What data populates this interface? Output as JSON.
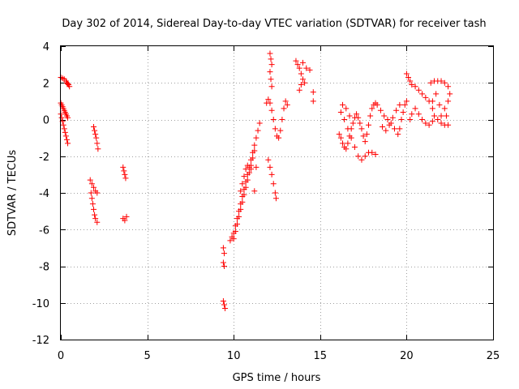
{
  "chart_data": {
    "type": "scatter",
    "title": "Day 302 of 2014, Sidereal Day-to-day VTEC variation (SDTVAR) for receiver tash",
    "xlabel": "GPS time / hours",
    "ylabel": "SDTVAR / TECUs",
    "xlim": [
      0,
      25
    ],
    "ylim": [
      -12,
      4
    ],
    "xticks": [
      0,
      5,
      10,
      15,
      20,
      25
    ],
    "yticks": [
      -12,
      -10,
      -8,
      -6,
      -4,
      -2,
      0,
      2,
      4
    ],
    "xtick_labels": [
      "0",
      "5",
      "10",
      "15",
      "20",
      "25"
    ],
    "ytick_labels": [
      "-12",
      "-10",
      "-8",
      "-6",
      "-4",
      "-2",
      "0",
      "2",
      "4"
    ],
    "grid": true,
    "marker": "+",
    "color": "#ff0000",
    "series": [
      {
        "name": "SDTVAR",
        "points": [
          [
            0.0,
            2.3
          ],
          [
            0.1,
            2.25
          ],
          [
            0.2,
            2.2
          ],
          [
            0.3,
            2.1
          ],
          [
            0.35,
            2.0
          ],
          [
            0.4,
            1.95
          ],
          [
            0.45,
            1.9
          ],
          [
            0.5,
            1.8
          ],
          [
            0.0,
            0.9
          ],
          [
            0.05,
            0.8
          ],
          [
            0.1,
            0.7
          ],
          [
            0.15,
            0.6
          ],
          [
            0.2,
            0.5
          ],
          [
            0.25,
            0.4
          ],
          [
            0.3,
            0.3
          ],
          [
            0.35,
            0.2
          ],
          [
            0.4,
            0.1
          ],
          [
            0.0,
            0.3
          ],
          [
            0.05,
            0.1
          ],
          [
            0.1,
            -0.1
          ],
          [
            0.15,
            -0.3
          ],
          [
            0.2,
            -0.5
          ],
          [
            0.25,
            -0.7
          ],
          [
            0.3,
            -0.9
          ],
          [
            0.35,
            -1.1
          ],
          [
            0.4,
            -1.3
          ],
          [
            1.9,
            -0.4
          ],
          [
            1.95,
            -0.6
          ],
          [
            2.0,
            -0.8
          ],
          [
            2.05,
            -1.0
          ],
          [
            2.1,
            -1.3
          ],
          [
            2.15,
            -1.6
          ],
          [
            1.7,
            -3.3
          ],
          [
            1.8,
            -3.5
          ],
          [
            1.9,
            -3.7
          ],
          [
            2.0,
            -3.9
          ],
          [
            2.1,
            -4.0
          ],
          [
            1.75,
            -4.0
          ],
          [
            1.8,
            -4.3
          ],
          [
            1.85,
            -4.6
          ],
          [
            1.9,
            -4.9
          ],
          [
            1.95,
            -5.2
          ],
          [
            2.0,
            -5.4
          ],
          [
            2.1,
            -5.6
          ],
          [
            3.6,
            -2.6
          ],
          [
            3.65,
            -2.8
          ],
          [
            3.7,
            -3.0
          ],
          [
            3.75,
            -3.2
          ],
          [
            3.6,
            -5.4
          ],
          [
            3.7,
            -5.5
          ],
          [
            3.8,
            -5.3
          ],
          [
            9.4,
            -7.0
          ],
          [
            9.45,
            -7.3
          ],
          [
            9.4,
            -7.8
          ],
          [
            9.45,
            -8.0
          ],
          [
            9.4,
            -9.9
          ],
          [
            9.45,
            -10.1
          ],
          [
            9.5,
            -10.3
          ],
          [
            9.8,
            -6.6
          ],
          [
            9.9,
            -6.4
          ],
          [
            10.0,
            -6.2
          ],
          [
            10.1,
            -5.8
          ],
          [
            10.2,
            -5.4
          ],
          [
            10.3,
            -5.0
          ],
          [
            10.4,
            -4.6
          ],
          [
            10.5,
            -4.2
          ],
          [
            10.6,
            -3.8
          ],
          [
            10.7,
            -3.4
          ],
          [
            10.8,
            -3.0
          ],
          [
            10.9,
            -2.6
          ],
          [
            11.0,
            -2.2
          ],
          [
            11.1,
            -1.8
          ],
          [
            11.2,
            -1.4
          ],
          [
            11.3,
            -1.0
          ],
          [
            11.4,
            -0.6
          ],
          [
            11.5,
            -0.2
          ],
          [
            10.0,
            -6.5
          ],
          [
            10.1,
            -6.1
          ],
          [
            10.2,
            -5.7
          ],
          [
            10.3,
            -5.3
          ],
          [
            10.4,
            -4.9
          ],
          [
            10.5,
            -4.5
          ],
          [
            10.6,
            -4.1
          ],
          [
            10.7,
            -3.7
          ],
          [
            10.8,
            -3.3
          ],
          [
            10.9,
            -2.9
          ],
          [
            11.0,
            -2.5
          ],
          [
            11.1,
            -2.1
          ],
          [
            11.2,
            -1.7
          ],
          [
            10.4,
            -3.9
          ],
          [
            10.5,
            -3.5
          ],
          [
            10.6,
            -3.1
          ],
          [
            10.7,
            -2.7
          ],
          [
            10.8,
            -2.5
          ],
          [
            11.0,
            -2.7
          ],
          [
            11.2,
            -3.9
          ],
          [
            11.3,
            -2.6
          ],
          [
            11.9,
            0.9
          ],
          [
            12.0,
            1.1
          ],
          [
            12.1,
            0.9
          ],
          [
            12.2,
            0.5
          ],
          [
            12.3,
            0.0
          ],
          [
            12.4,
            -0.5
          ],
          [
            12.5,
            -0.9
          ],
          [
            12.6,
            -1.0
          ],
          [
            12.7,
            -0.6
          ],
          [
            12.8,
            0.0
          ],
          [
            12.9,
            0.6
          ],
          [
            13.0,
            1.0
          ],
          [
            13.1,
            0.8
          ],
          [
            12.1,
            3.6
          ],
          [
            12.15,
            3.3
          ],
          [
            12.2,
            3.0
          ],
          [
            12.1,
            2.6
          ],
          [
            12.15,
            2.2
          ],
          [
            12.2,
            1.8
          ],
          [
            12.0,
            -2.2
          ],
          [
            12.1,
            -2.6
          ],
          [
            12.2,
            -3.0
          ],
          [
            12.3,
            -3.5
          ],
          [
            12.4,
            -4.0
          ],
          [
            12.45,
            -4.3
          ],
          [
            13.6,
            3.2
          ],
          [
            13.7,
            3.0
          ],
          [
            13.8,
            2.8
          ],
          [
            13.9,
            2.5
          ],
          [
            14.0,
            2.2
          ],
          [
            14.1,
            2.0
          ],
          [
            13.8,
            1.6
          ],
          [
            13.9,
            1.9
          ],
          [
            14.0,
            3.1
          ],
          [
            14.2,
            2.8
          ],
          [
            14.4,
            2.7
          ],
          [
            14.6,
            1.5
          ],
          [
            14.6,
            1.0
          ],
          [
            16.1,
            -0.8
          ],
          [
            16.2,
            -1.0
          ],
          [
            16.3,
            -1.3
          ],
          [
            16.4,
            -1.5
          ],
          [
            16.5,
            -1.6
          ],
          [
            16.6,
            -1.3
          ],
          [
            16.7,
            -0.9
          ],
          [
            16.8,
            -0.5
          ],
          [
            16.9,
            -0.2
          ],
          [
            17.0,
            0.1
          ],
          [
            17.1,
            0.3
          ],
          [
            17.2,
            0.1
          ],
          [
            17.3,
            -0.2
          ],
          [
            17.4,
            -0.5
          ],
          [
            17.5,
            -0.9
          ],
          [
            17.6,
            -1.2
          ],
          [
            17.7,
            -0.8
          ],
          [
            17.8,
            -0.3
          ],
          [
            17.9,
            0.2
          ],
          [
            18.0,
            0.6
          ],
          [
            18.1,
            0.8
          ],
          [
            18.2,
            0.9
          ],
          [
            16.2,
            0.4
          ],
          [
            16.4,
            0.0
          ],
          [
            16.6,
            -0.5
          ],
          [
            16.8,
            -1.0
          ],
          [
            17.0,
            -1.5
          ],
          [
            17.2,
            -2.0
          ],
          [
            17.4,
            -2.2
          ],
          [
            17.6,
            -2.0
          ],
          [
            17.8,
            -1.8
          ],
          [
            18.0,
            -1.8
          ],
          [
            18.2,
            -1.9
          ],
          [
            16.3,
            0.8
          ],
          [
            16.5,
            0.6
          ],
          [
            16.7,
            0.2
          ],
          [
            18.3,
            0.8
          ],
          [
            18.5,
            0.5
          ],
          [
            18.7,
            0.2
          ],
          [
            18.9,
            0.0
          ],
          [
            19.1,
            -0.2
          ],
          [
            19.3,
            -0.5
          ],
          [
            19.5,
            -0.8
          ],
          [
            19.6,
            -0.5
          ],
          [
            19.7,
            0.0
          ],
          [
            19.8,
            0.4
          ],
          [
            19.9,
            0.8
          ],
          [
            20.0,
            1.0
          ],
          [
            18.6,
            -0.4
          ],
          [
            18.8,
            -0.6
          ],
          [
            19.0,
            -0.3
          ],
          [
            19.2,
            0.1
          ],
          [
            19.4,
            0.5
          ],
          [
            19.6,
            0.8
          ],
          [
            20.0,
            2.5
          ],
          [
            20.1,
            2.3
          ],
          [
            20.2,
            2.1
          ],
          [
            20.3,
            1.9
          ],
          [
            20.5,
            1.8
          ],
          [
            20.7,
            1.6
          ],
          [
            20.9,
            1.4
          ],
          [
            21.1,
            1.2
          ],
          [
            21.3,
            1.0
          ],
          [
            21.5,
            0.6
          ],
          [
            21.6,
            0.2
          ],
          [
            21.5,
            -0.1
          ],
          [
            21.3,
            -0.3
          ],
          [
            21.1,
            -0.2
          ],
          [
            20.9,
            0.0
          ],
          [
            20.7,
            0.3
          ],
          [
            20.5,
            0.6
          ],
          [
            20.3,
            0.3
          ],
          [
            20.2,
            0.0
          ],
          [
            21.4,
            2.0
          ],
          [
            21.6,
            2.1
          ],
          [
            21.8,
            2.1
          ],
          [
            22.0,
            2.1
          ],
          [
            22.2,
            2.0
          ],
          [
            22.4,
            1.8
          ],
          [
            22.5,
            1.4
          ],
          [
            22.4,
            1.0
          ],
          [
            22.2,
            0.6
          ],
          [
            22.0,
            0.2
          ],
          [
            21.8,
            0.0
          ],
          [
            22.0,
            -0.2
          ],
          [
            22.2,
            -0.3
          ],
          [
            22.4,
            -0.3
          ],
          [
            21.7,
            1.4
          ],
          [
            21.5,
            1.0
          ],
          [
            21.9,
            0.8
          ],
          [
            22.3,
            0.2
          ]
        ]
      }
    ]
  }
}
